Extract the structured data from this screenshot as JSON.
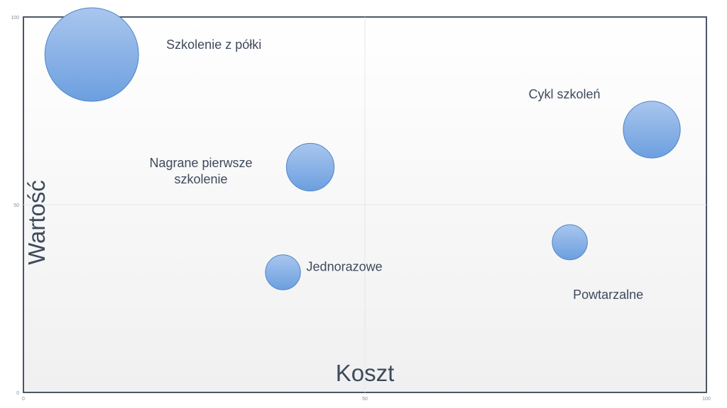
{
  "chart_data": {
    "type": "scatter",
    "title": "",
    "xlabel": "Koszt",
    "ylabel": "Wartość",
    "xlim": [
      0,
      100
    ],
    "ylim": [
      0,
      100
    ],
    "x_ticks": [
      "0",
      "50",
      "100"
    ],
    "y_ticks": [
      "0",
      "50",
      "100"
    ],
    "grid": true,
    "colors": {
      "bubble": "#6c9fdf",
      "bubble_light": "#a9c6ee",
      "bubble_stroke": "#4f86c6",
      "text": "#3e4a5c",
      "axis": "#4a5666"
    },
    "points": [
      {
        "x": 10,
        "y": 90,
        "size": 100,
        "label": "Szkolenie z półki"
      },
      {
        "x": 92,
        "y": 70,
        "size": 37,
        "label": "Cykl szkoleń"
      },
      {
        "x": 42,
        "y": 60,
        "size": 26,
        "label": "Nagrane pierwsze szkolenie"
      },
      {
        "x": 80,
        "y": 40,
        "size": 14,
        "label": "Powtarzalne"
      },
      {
        "x": 38,
        "y": 32,
        "size": 14,
        "label": "Jednorazowe"
      }
    ]
  }
}
